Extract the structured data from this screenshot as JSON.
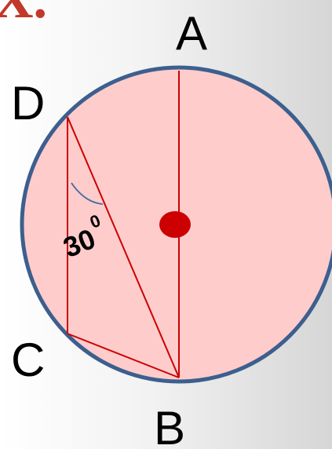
{
  "heading_fragment": "X.",
  "points": {
    "A": "A",
    "B": "B",
    "C": "C",
    "D": "D"
  },
  "angle": {
    "value": "30",
    "degree_mark": "0"
  },
  "colors": {
    "circle_fill": "#ffcccc",
    "circle_stroke": "#3c5f8e",
    "lines": "#cc0000",
    "center": "#cc0000",
    "arc": "#4a6fa5",
    "heading": "#c0392b"
  }
}
